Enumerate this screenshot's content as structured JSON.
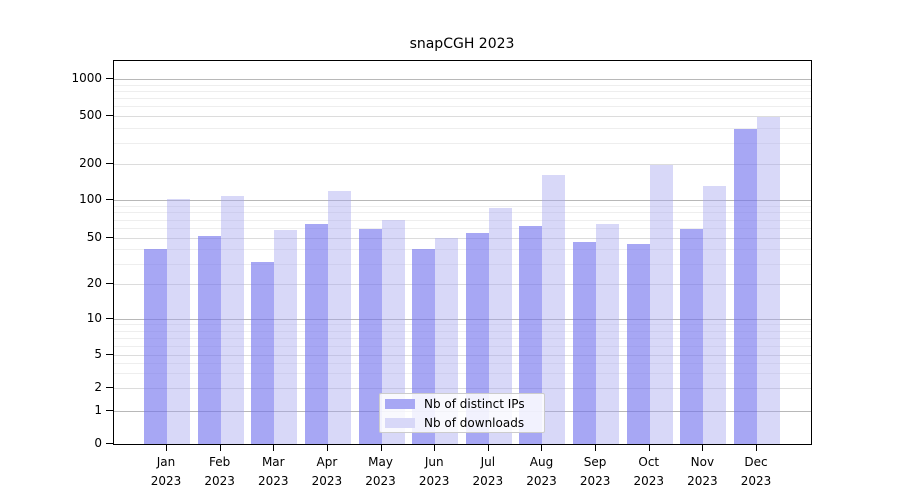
{
  "title": "snapCGH 2023",
  "chart_data": {
    "type": "bar",
    "title": "snapCGH 2023",
    "categories": [
      "Jan",
      "Feb",
      "Mar",
      "Apr",
      "May",
      "Jun",
      "Jul",
      "Aug",
      "Sep",
      "Oct",
      "Nov",
      "Dec"
    ],
    "category_year": "2023",
    "series": [
      {
        "name": "Nb of distinct IPs",
        "color": "#a7a7f4",
        "bar_color": "rgba(113,113,238,0.62)",
        "values": [
          40,
          52,
          31,
          65,
          59,
          40,
          55,
          62,
          46,
          44,
          59,
          390
        ]
      },
      {
        "name": "Nb of downloads",
        "color": "#d8d8f8",
        "bar_color": "rgba(162,162,238,0.42)",
        "values": [
          102,
          108,
          58,
          118,
          69,
          50,
          87,
          162,
          64,
          197,
          131,
          490
        ]
      }
    ],
    "y_ticks": [
      0,
      1,
      2,
      5,
      10,
      20,
      50,
      100,
      200,
      500,
      1000
    ],
    "y_scale": "log",
    "ylim": [
      0,
      1400
    ],
    "grid": true,
    "legend_position": "bottom-center"
  }
}
